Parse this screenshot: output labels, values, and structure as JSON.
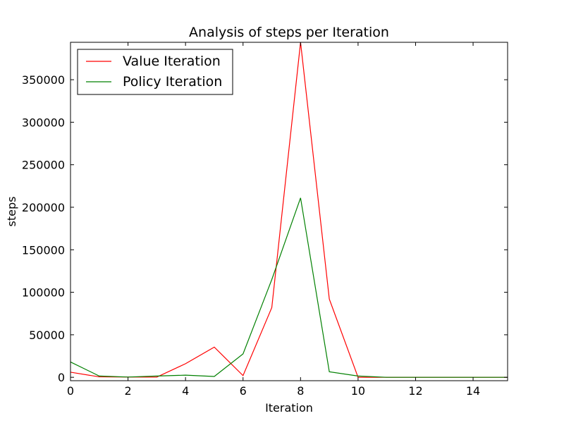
{
  "chart_data": {
    "type": "line",
    "title": "Analysis of steps per Iteration",
    "xlabel": "Iteration",
    "ylabel": "steps",
    "xlim": [
      0,
      15.2
    ],
    "ylim": [
      -4000,
      394000
    ],
    "xticks": [
      0,
      2,
      4,
      6,
      8,
      10,
      12,
      14
    ],
    "yticks": [
      0,
      50000,
      100000,
      150000,
      200000,
      250000,
      300000,
      350000
    ],
    "x": [
      0,
      1,
      2,
      3,
      4,
      5,
      6,
      7,
      8,
      9,
      10,
      11,
      12,
      13,
      14,
      15,
      15.2
    ],
    "series": [
      {
        "name": "Value Iteration",
        "color": "#ff0000",
        "values": [
          6000,
          500,
          300,
          200,
          16000,
          35500,
          2000,
          82000,
          394000,
          92000,
          0,
          0,
          0,
          0,
          0,
          0,
          0
        ]
      },
      {
        "name": "Policy Iteration",
        "color": "#008000",
        "values": [
          18000,
          1500,
          300,
          1500,
          2500,
          1000,
          27500,
          115000,
          211000,
          6500,
          1500,
          0,
          0,
          0,
          0,
          0,
          0
        ]
      }
    ],
    "grid": false,
    "legend_position": "top-left"
  }
}
